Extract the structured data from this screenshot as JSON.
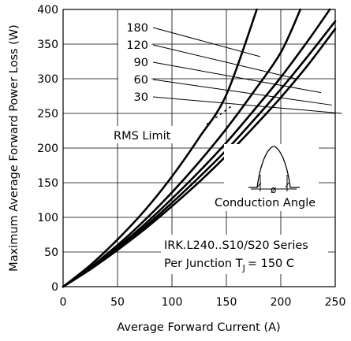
{
  "chart_data": {
    "type": "line",
    "title": "",
    "xlabel": "Average Forward Current (A)",
    "ylabel": "Maximum Average Forward Power Loss (W)",
    "xlim": [
      0,
      250
    ],
    "ylim": [
      0,
      400
    ],
    "x_ticks": [
      "0",
      "50",
      "100",
      "150",
      "200",
      "250"
    ],
    "y_ticks": [
      "0",
      "50",
      "100",
      "150",
      "200",
      "250",
      "300",
      "350",
      "400"
    ],
    "grid": true,
    "series": [
      {
        "name": "180",
        "x": [
          0,
          25,
          50,
          75,
          100,
          125,
          150,
          178
        ],
        "y": [
          0,
          31,
          68,
          110,
          159,
          215,
          277,
          400
        ]
      },
      {
        "name": "120",
        "x": [
          0,
          25,
          50,
          75,
          100,
          125,
          150,
          175,
          200,
          218
        ],
        "y": [
          0,
          28,
          60,
          96,
          136,
          180,
          228,
          281,
          338,
          400
        ]
      },
      {
        "name": "90",
        "x": [
          0,
          25,
          50,
          75,
          100,
          125,
          150,
          175,
          200,
          225,
          245
        ],
        "y": [
          0,
          27,
          57,
          90,
          127,
          166,
          208,
          254,
          302,
          355,
          400
        ]
      },
      {
        "name": "60",
        "x": [
          0,
          25,
          50,
          75,
          100,
          125,
          150,
          175,
          200,
          225,
          250
        ],
        "y": [
          0,
          26,
          55,
          86,
          121,
          158,
          197,
          240,
          285,
          333,
          383
        ]
      },
      {
        "name": "30",
        "x": [
          0,
          25,
          50,
          75,
          100,
          125,
          150,
          175,
          200,
          225,
          250
        ],
        "y": [
          0,
          25,
          53,
          83,
          116,
          151,
          189,
          230,
          273,
          320,
          372
        ]
      }
    ],
    "annotations": {
      "rms_limit": "RMS Limit",
      "conduction_angle": "Conduction Angle",
      "phi": "ø",
      "series_line": "IRK.L240..S10/S20 Series",
      "junction_prefix": "Per Junction  T",
      "junction_sub": "J",
      "junction_suffix": "= 150 C"
    }
  }
}
